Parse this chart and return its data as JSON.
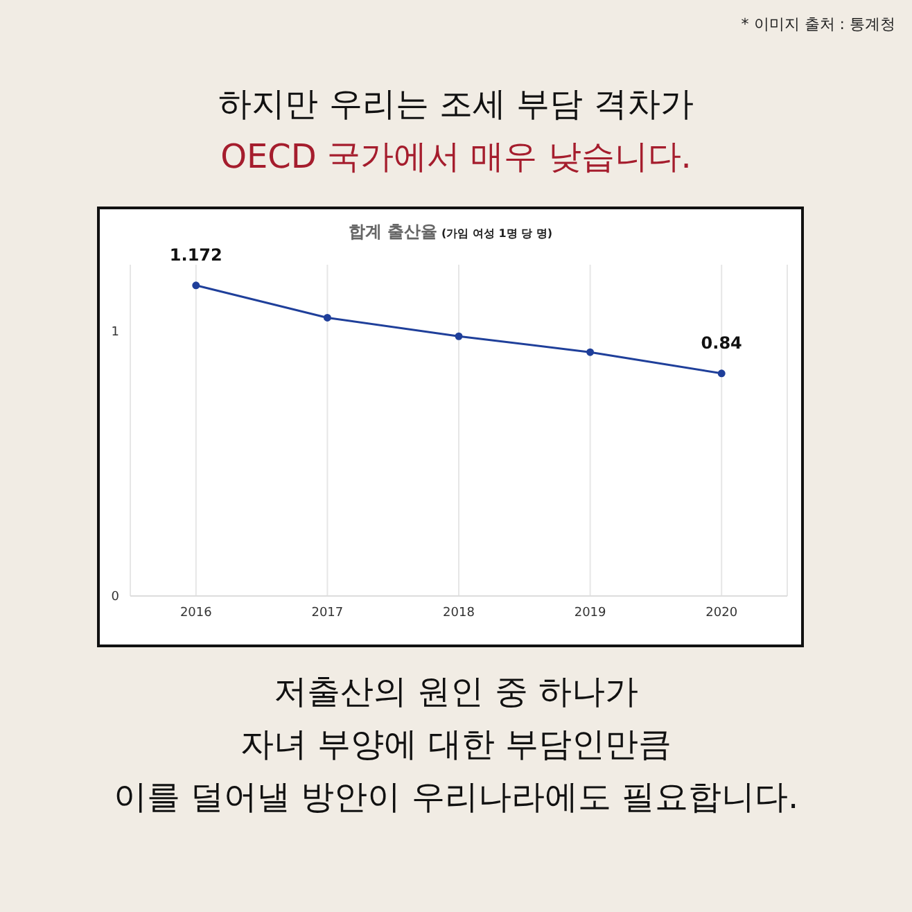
{
  "chart_data": {
    "type": "line",
    "title": "하지만 우리는 조세 부담 격차가\nOECD 국가에서 매우 낮습니다.",
    "subtitle": "합계 출산율 (가임 여성 1명 당 명)",
    "categories": [
      "2016",
      "2017",
      "2018",
      "2019",
      "2020"
    ],
    "series": [
      {
        "color": "#1f3f9a",
        "values": [
          1.172,
          1.05,
          0.98,
          0.92,
          0.84
        ],
        "value_labels": [
          "1.172",
          null,
          null,
          null,
          "0.84"
        ]
      }
    ],
    "ylim": [
      0,
      1.25
    ],
    "yticks": [
      0,
      1
    ],
    "grid": "x",
    "marker": "circle",
    "line_style": "solid",
    "legend": false,
    "annotations": [
      "* 이미지 출처 : 통계청",
      "저출산의 원인 중 하나가\n자녀 부양에 대한 부담인만큼\n이를 덜어낼 방안이 우리나라에도 필요합니다."
    ]
  }
}
